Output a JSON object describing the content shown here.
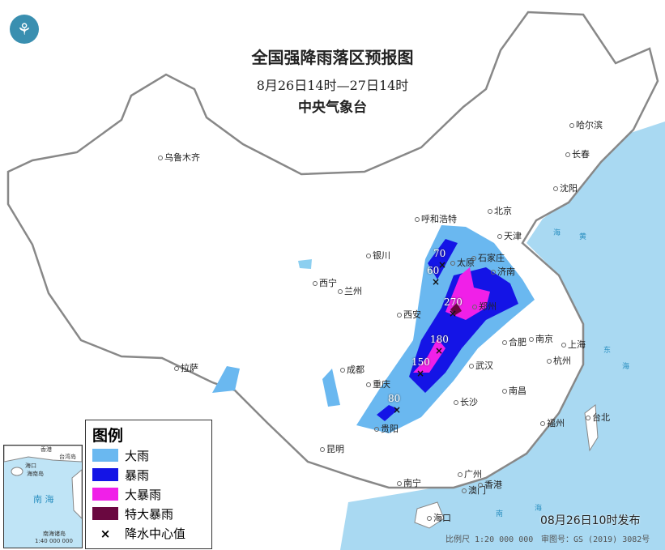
{
  "header": {
    "title": "全国强降雨落区预报图",
    "period": "8月26日14时—27日14时",
    "agency": "中央气象台",
    "logo": "中央气象台徽标"
  },
  "colors": {
    "heavy_rain": "#6ab8f0",
    "rainstorm": "#1414e6",
    "heavy_rainstorm": "#f020e8",
    "extreme_rainstorm": "#6a0840",
    "sea": "#a9d9f2"
  },
  "cities": [
    "乌鲁木齐",
    "哈尔滨",
    "长春",
    "沈阳",
    "北京",
    "天津",
    "呼和浩特",
    "石家庄",
    "太原",
    "济南",
    "银川",
    "西宁",
    "兰州",
    "郑州",
    "西安",
    "合肥",
    "南京",
    "上海",
    "杭州",
    "武汉",
    "成都",
    "重庆",
    "拉萨",
    "长沙",
    "南昌",
    "福州",
    "台北",
    "贵阳",
    "昆明",
    "南宁",
    "广州",
    "澳门",
    "香港",
    "海口"
  ],
  "rain_centers": [
    {
      "value": "70"
    },
    {
      "value": "60"
    },
    {
      "value": "270"
    },
    {
      "value": "180"
    },
    {
      "value": "150"
    },
    {
      "value": "80"
    }
  ],
  "legend": {
    "title": "图例",
    "items": [
      "大雨",
      "暴雨",
      "大暴雨",
      "特大暴雨",
      "降水中心值"
    ],
    "center_mark": "×"
  },
  "inset": {
    "sea_label": "南  海",
    "islands_label": "南海诸岛",
    "scale": "1:40 000 000",
    "labels": [
      "海口",
      "海南岛",
      "台湾岛",
      "香港"
    ]
  },
  "footer": {
    "issued": "08月26日10时发布",
    "scale": "比例尺 1:20 000 000",
    "map_no": "审图号：GS (2019) 3082号"
  },
  "sea_labels": [
    "黄",
    "海",
    "东",
    "海",
    "南",
    "海"
  ]
}
